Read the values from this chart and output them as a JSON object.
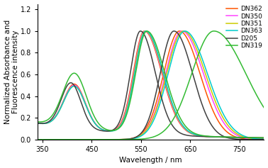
{
  "title": "",
  "xlabel": "Wavelength / nm",
  "ylabel": "Normalized Absorbance and\nFluorescence intensity",
  "xlim": [
    340,
    800
  ],
  "ylim": [
    0,
    1.25
  ],
  "yticks": [
    0,
    0.2,
    0.4,
    0.6,
    0.8,
    1.0,
    1.2
  ],
  "xticks": [
    350,
    450,
    550,
    650,
    750
  ],
  "dyes": [
    {
      "name": "DN362",
      "color": "#ff5500",
      "abs_peak": 557,
      "abs_sigma_l": 22,
      "abs_sigma_r": 35,
      "abs_peak2": 415,
      "abs_sigma2": 22,
      "abs_amp2": 0.43,
      "abs_base": 0.15,
      "fl_peak": 628,
      "fl_sigma_l": 32,
      "fl_sigma_r": 42
    },
    {
      "name": "DN350",
      "color": "#ff44ff",
      "abs_peak": 558,
      "abs_sigma_l": 22,
      "abs_sigma_r": 35,
      "abs_peak2": 415,
      "abs_sigma2": 22,
      "abs_amp2": 0.42,
      "abs_base": 0.15,
      "fl_peak": 633,
      "fl_sigma_l": 33,
      "fl_sigma_r": 44
    },
    {
      "name": "DN351",
      "color": "#cccc00",
      "abs_peak": 559,
      "abs_sigma_l": 22,
      "abs_sigma_r": 35,
      "abs_peak2": 415,
      "abs_sigma2": 22,
      "abs_amp2": 0.41,
      "abs_base": 0.15,
      "fl_peak": 636,
      "fl_sigma_l": 34,
      "fl_sigma_r": 45
    },
    {
      "name": "DN363",
      "color": "#00cccc",
      "abs_peak": 560,
      "abs_sigma_l": 22,
      "abs_sigma_r": 35,
      "abs_peak2": 415,
      "abs_sigma2": 22,
      "abs_amp2": 0.41,
      "abs_base": 0.15,
      "fl_peak": 639,
      "fl_sigma_l": 34,
      "fl_sigma_r": 46
    },
    {
      "name": "D205",
      "color": "#404040",
      "abs_peak": 549,
      "abs_sigma_l": 20,
      "abs_sigma_r": 30,
      "abs_peak2": 408,
      "abs_sigma2": 20,
      "abs_amp2": 0.44,
      "abs_base": 0.15,
      "fl_peak": 617,
      "fl_sigma_l": 28,
      "fl_sigma_r": 38
    },
    {
      "name": "DN319",
      "color": "#33bb33",
      "abs_peak": 562,
      "abs_sigma_l": 22,
      "abs_sigma_r": 36,
      "abs_peak2": 415,
      "abs_sigma2": 24,
      "abs_amp2": 0.53,
      "abs_base": 0.16,
      "fl_peak": 698,
      "fl_sigma_l": 45,
      "fl_sigma_r": 65
    }
  ],
  "background_color": "#ffffff",
  "legend_fontsize": 6.5,
  "axis_fontsize": 7.5,
  "tick_fontsize": 7,
  "linewidth": 1.1
}
